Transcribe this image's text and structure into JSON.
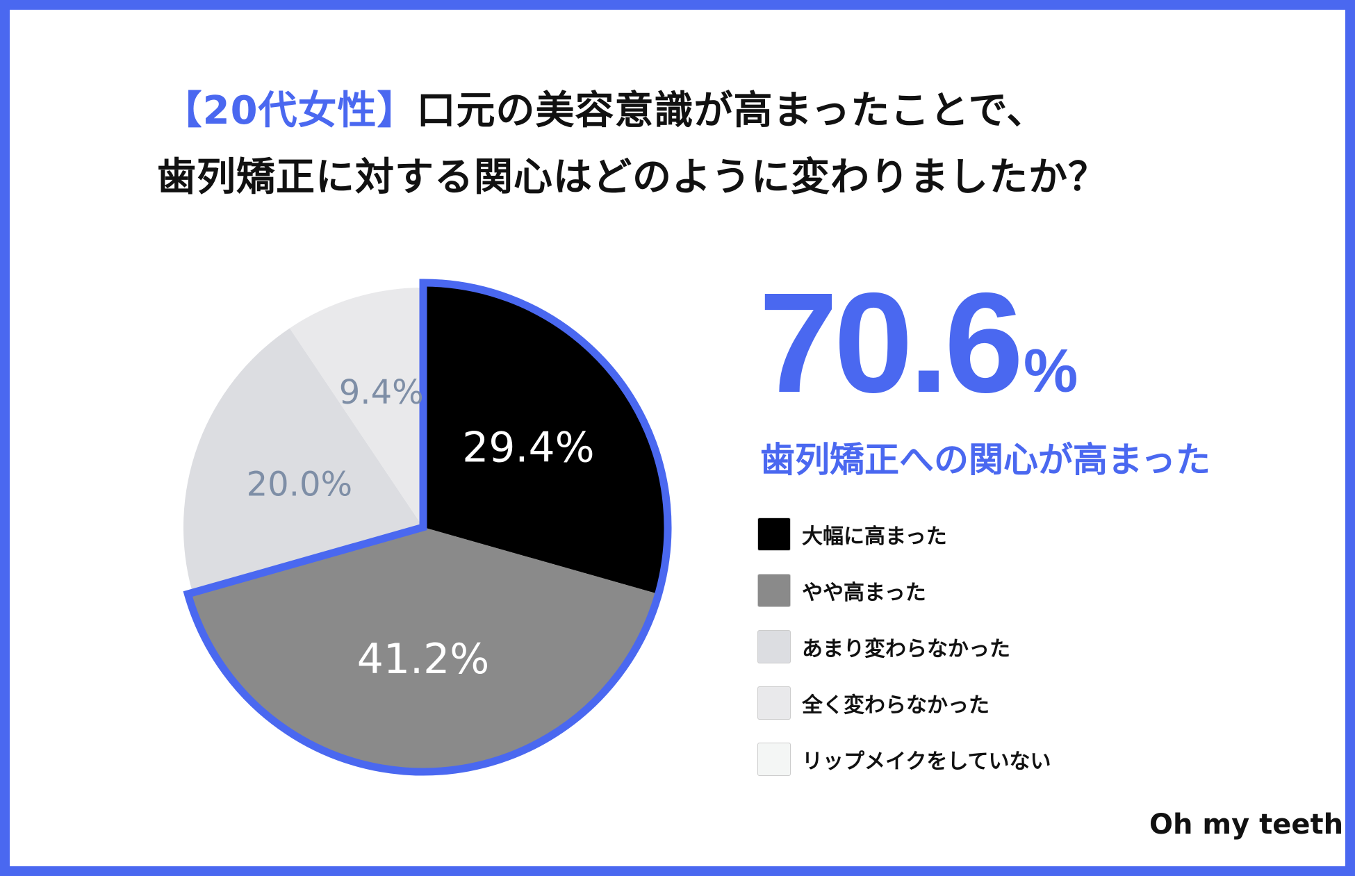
{
  "title": {
    "highlight": "【20代女性】",
    "line1_rest": "口元の美容意識が高まったことで、",
    "line2": "歯列矯正に対する関心はどのように変わりましたか？"
  },
  "headline": {
    "value": "70.6",
    "unit": "%",
    "caption": "歯列矯正への関心が高まった"
  },
  "brand": "Oh my teeth",
  "colors": {
    "accent": "#4a68f0",
    "label_light": "#7e8ea6",
    "label_dark": "#ffffff"
  },
  "chart_data": {
    "type": "pie",
    "start": "top",
    "direction": "clockwise",
    "highlighted_total": 70.6,
    "slices": [
      {
        "label": "大幅に高まった",
        "value": 29.4,
        "display": "29.4%",
        "color": "#000000",
        "highlighted": true
      },
      {
        "label": "やや高まった",
        "value": 41.2,
        "display": "41.2%",
        "color": "#8a8a8a",
        "highlighted": true
      },
      {
        "label": "あまり変わらなかった",
        "value": 20.0,
        "display": "20.0%",
        "color": "#dcdde1",
        "highlighted": false
      },
      {
        "label": "全く変わらなかった",
        "value": 9.4,
        "display": "9.4%",
        "color": "#e9e9eb",
        "highlighted": false
      },
      {
        "label": "リップメイクをしていない",
        "value": 0,
        "display": "",
        "color": "#f4f6f5",
        "highlighted": false
      }
    ]
  }
}
